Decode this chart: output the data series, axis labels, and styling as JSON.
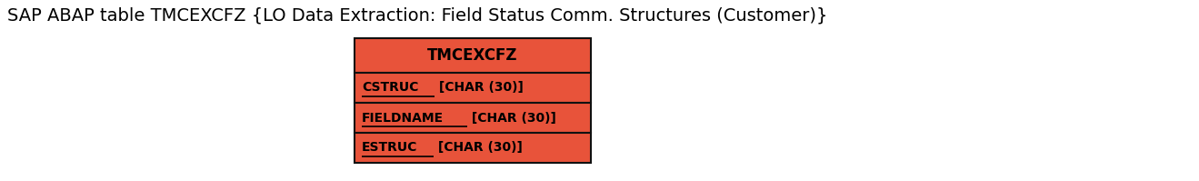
{
  "title": "SAP ABAP table TMCEXCFZ {LO Data Extraction: Field Status Comm. Structures (Customer)}",
  "title_fontsize": 14,
  "title_color": "#000000",
  "table_name": "TMCEXCFZ",
  "fields": [
    "CSTRUC [CHAR (30)]",
    "FIELDNAME [CHAR (30)]",
    "ESTRUC [CHAR (30)]"
  ],
  "underlined_parts": [
    "CSTRUC",
    "FIELDNAME",
    "ESTRUC"
  ],
  "box_color": "#E8533A",
  "border_color": "#111111",
  "text_color": "#000000",
  "header_bg": "#E8533A",
  "field_bg": "#E8533A",
  "background_color": "#ffffff",
  "fig_width": 13.19,
  "fig_height": 1.99,
  "dpi": 100
}
